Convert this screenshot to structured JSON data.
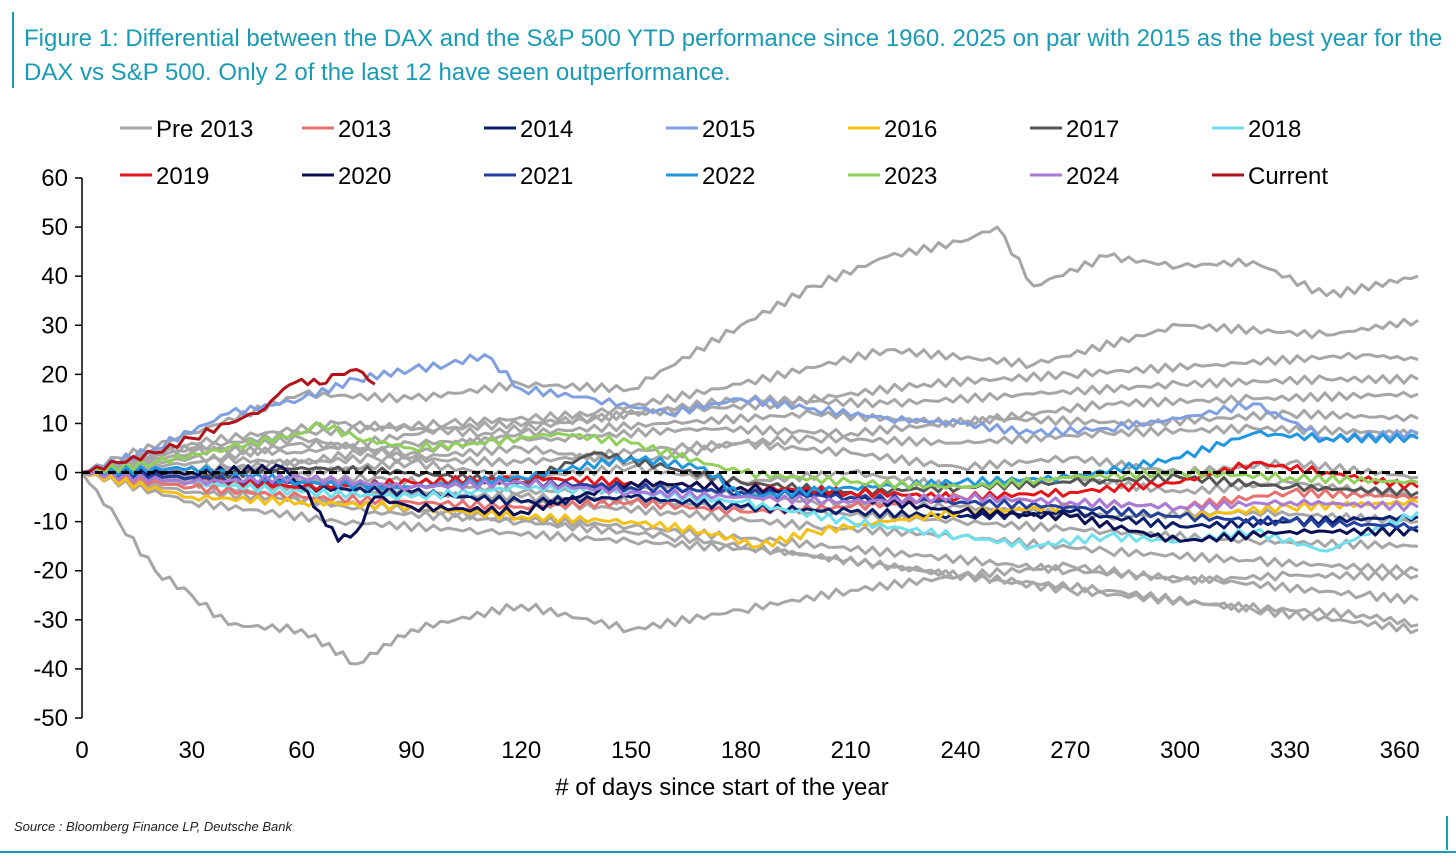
{
  "title": "Figure 1: Differential between the DAX and the S&P 500 YTD performance since 1960. 2025 on par with 2015 as the best year for the DAX vs S&P 500. Only 2 of the last 12 have seen outperformance.",
  "source": "Source : Bloomberg Finance LP, Deutsche Bank",
  "chart_data": {
    "type": "line",
    "title": "",
    "xlabel": "# of days since start of the year",
    "ylabel": "",
    "xlim": [
      0,
      365
    ],
    "ylim": [
      -50,
      60
    ],
    "x_ticks": [
      0,
      30,
      60,
      90,
      120,
      150,
      180,
      210,
      240,
      270,
      300,
      330,
      360
    ],
    "y_ticks": [
      60,
      50,
      40,
      30,
      20,
      10,
      0,
      -10,
      -20,
      -30,
      -40,
      -50
    ],
    "grid": false,
    "legend_position": "top",
    "zero_line": {
      "y": 0,
      "style": "dashed",
      "color": "#000000"
    },
    "legend": [
      {
        "name": "Pre 2013",
        "color": "#a6a6a6"
      },
      {
        "name": "2013",
        "color": "#e8706f"
      },
      {
        "name": "2014",
        "color": "#0b1e6b"
      },
      {
        "name": "2015",
        "color": "#7f9fe0"
      },
      {
        "name": "2016",
        "color": "#f5c016"
      },
      {
        "name": "2017",
        "color": "#555555"
      },
      {
        "name": "2018",
        "color": "#6fe0ee"
      },
      {
        "name": "2019",
        "color": "#e5141a"
      },
      {
        "name": "2020",
        "color": "#0a0f55"
      },
      {
        "name": "2021",
        "color": "#2140a0"
      },
      {
        "name": "2022",
        "color": "#1e96e0"
      },
      {
        "name": "2023",
        "color": "#8fcf5a"
      },
      {
        "name": "2024",
        "color": "#a97ad6"
      },
      {
        "name": "Current",
        "color": "#b2121a"
      }
    ],
    "series": [
      {
        "name": "Pre 2013",
        "color": "#a6a6a6",
        "x": [
          0,
          10,
          20,
          30,
          40,
          60,
          75,
          90,
          120,
          150,
          180,
          210,
          240,
          270,
          300,
          330,
          365
        ],
        "y": [
          0,
          -10,
          -20,
          -25,
          -31,
          -32,
          -39,
          -32,
          -27,
          -32,
          -28,
          -24,
          -21,
          -19,
          -22,
          -21,
          -21
        ]
      },
      {
        "name": "Pre 2013",
        "color": "#a6a6a6",
        "x": [
          0,
          10,
          30,
          60,
          90,
          120,
          150,
          180,
          200,
          220,
          240,
          250,
          260,
          280,
          300,
          320,
          340,
          365
        ],
        "y": [
          0,
          3,
          8,
          16,
          15,
          18,
          17,
          30,
          38,
          44,
          47,
          50,
          38,
          44,
          42,
          43,
          36,
          40
        ]
      },
      {
        "name": "Pre 2013",
        "color": "#a6a6a6",
        "x": [
          0,
          20,
          60,
          100,
          140,
          180,
          220,
          260,
          300,
          340,
          365
        ],
        "y": [
          0,
          4,
          8,
          10,
          12,
          18,
          25,
          22,
          30,
          28,
          31
        ]
      },
      {
        "name": "Pre 2013",
        "color": "#a6a6a6",
        "x": [
          0,
          30,
          70,
          110,
          150,
          190,
          230,
          270,
          310,
          350,
          365
        ],
        "y": [
          0,
          6,
          10,
          8,
          12,
          14,
          18,
          20,
          22,
          24,
          23
        ]
      },
      {
        "name": "Pre 2013",
        "color": "#a6a6a6",
        "x": [
          0,
          30,
          60,
          100,
          140,
          180,
          220,
          260,
          300,
          340,
          365
        ],
        "y": [
          0,
          5,
          4,
          9,
          11,
          15,
          14,
          16,
          18,
          19,
          19
        ]
      },
      {
        "name": "Pre 2013",
        "color": "#a6a6a6",
        "x": [
          0,
          30,
          60,
          90,
          120,
          160,
          200,
          240,
          280,
          320,
          365
        ],
        "y": [
          0,
          2,
          6,
          4,
          8,
          10,
          12,
          10,
          14,
          15,
          16
        ]
      },
      {
        "name": "Pre 2013",
        "color": "#a6a6a6",
        "x": [
          0,
          30,
          60,
          90,
          130,
          170,
          210,
          250,
          290,
          330,
          365
        ],
        "y": [
          0,
          3,
          2,
          6,
          7,
          9,
          8,
          11,
          10,
          12,
          11
        ]
      },
      {
        "name": "Pre 2013",
        "color": "#a6a6a6",
        "x": [
          0,
          40,
          80,
          120,
          160,
          200,
          240,
          280,
          320,
          365
        ],
        "y": [
          0,
          1,
          3,
          2,
          5,
          7,
          6,
          8,
          9,
          8
        ]
      },
      {
        "name": "Pre 2013",
        "color": "#a6a6a6",
        "x": [
          0,
          40,
          80,
          120,
          160,
          200,
          240,
          280,
          320,
          365
        ],
        "y": [
          0,
          -2,
          -4,
          -5,
          -6,
          -8,
          -10,
          -12,
          -14,
          -15
        ]
      },
      {
        "name": "Pre 2013",
        "color": "#a6a6a6",
        "x": [
          0,
          30,
          70,
          110,
          150,
          190,
          230,
          270,
          310,
          350,
          365
        ],
        "y": [
          0,
          -4,
          -6,
          -9,
          -11,
          -14,
          -17,
          -20,
          -22,
          -25,
          -26
        ]
      },
      {
        "name": "Pre 2013",
        "color": "#a6a6a6",
        "x": [
          0,
          30,
          70,
          110,
          150,
          190,
          230,
          270,
          310,
          350,
          365
        ],
        "y": [
          0,
          -6,
          -10,
          -12,
          -14,
          -16,
          -20,
          -24,
          -27,
          -29,
          -31
        ]
      },
      {
        "name": "Pre 2013",
        "color": "#a6a6a6",
        "x": [
          0,
          40,
          80,
          120,
          160,
          200,
          240,
          280,
          320,
          365
        ],
        "y": [
          0,
          -3,
          -8,
          -10,
          -13,
          -17,
          -21,
          -24,
          -28,
          -32
        ]
      },
      {
        "name": "Pre 2013",
        "color": "#a6a6a6",
        "x": [
          0,
          40,
          80,
          120,
          160,
          200,
          240,
          280,
          320,
          365
        ],
        "y": [
          0,
          -1,
          -3,
          -6,
          -8,
          -11,
          -13,
          -16,
          -18,
          -20
        ]
      },
      {
        "name": "Pre 2013",
        "color": "#a6a6a6",
        "x": [
          0,
          40,
          80,
          120,
          160,
          200,
          240,
          280,
          320,
          365
        ],
        "y": [
          0,
          -2,
          -1,
          -4,
          -3,
          -6,
          -7,
          -9,
          -8,
          -10
        ]
      },
      {
        "name": "Pre 2013",
        "color": "#a6a6a6",
        "x": [
          0,
          30,
          60,
          90,
          120,
          150,
          180,
          210,
          240,
          270,
          300,
          330,
          365
        ],
        "y": [
          0,
          1,
          0,
          2,
          -1,
          1,
          -2,
          0,
          -3,
          -1,
          -4,
          -2,
          -5
        ]
      },
      {
        "name": "Pre 2013",
        "color": "#a6a6a6",
        "x": [
          0,
          30,
          60,
          90,
          120,
          150,
          180,
          210,
          240,
          270,
          300,
          330,
          365
        ],
        "y": [
          0,
          4,
          7,
          3,
          5,
          2,
          6,
          4,
          1,
          3,
          0,
          2,
          -1
        ]
      },
      {
        "name": "2013",
        "color": "#e8706f",
        "x": [
          0,
          30,
          60,
          90,
          120,
          150,
          180,
          210,
          240,
          270,
          300,
          330,
          365
        ],
        "y": [
          0,
          -3,
          -5,
          -6,
          -7,
          -6,
          -8,
          -7,
          -5,
          -6,
          -7,
          -4,
          -5
        ]
      },
      {
        "name": "2014",
        "color": "#0b1e6b",
        "x": [
          0,
          30,
          60,
          90,
          120,
          150,
          180,
          210,
          240,
          270,
          300,
          330,
          365
        ],
        "y": [
          0,
          -1,
          -3,
          -4,
          -6,
          -5,
          -7,
          -8,
          -9,
          -8,
          -11,
          -10,
          -9
        ]
      },
      {
        "name": "2015",
        "color": "#7f9fe0",
        "x": [
          0,
          20,
          40,
          60,
          75,
          90,
          100,
          110,
          120,
          140,
          160,
          180,
          200,
          220,
          240,
          260,
          280,
          300,
          320,
          340,
          365
        ],
        "y": [
          0,
          5,
          12,
          15,
          19,
          21,
          22,
          24,
          17,
          15,
          12,
          15,
          13,
          11,
          10,
          8,
          9,
          11,
          14,
          7,
          8
        ]
      },
      {
        "name": "2016",
        "color": "#f5c016",
        "x": [
          0,
          30,
          60,
          90,
          120,
          150,
          170,
          185,
          200,
          220,
          240,
          270,
          300,
          330,
          365
        ],
        "y": [
          0,
          -5,
          -6,
          -7,
          -9,
          -10,
          -12,
          -15,
          -12,
          -10,
          -8,
          -7,
          -9,
          -7,
          -6
        ]
      },
      {
        "name": "2017",
        "color": "#555555",
        "x": [
          0,
          30,
          60,
          90,
          120,
          140,
          160,
          180,
          210,
          240,
          270,
          300,
          330,
          365
        ],
        "y": [
          0,
          -1,
          1,
          0,
          -2,
          4,
          1,
          -2,
          -4,
          -3,
          -2,
          -1,
          -3,
          -4
        ]
      },
      {
        "name": "2018",
        "color": "#6fe0ee",
        "x": [
          0,
          30,
          60,
          90,
          120,
          150,
          180,
          210,
          240,
          260,
          280,
          300,
          320,
          340,
          365
        ],
        "y": [
          0,
          -2,
          -4,
          -5,
          -3,
          -4,
          -6,
          -10,
          -13,
          -15,
          -13,
          -14,
          -12,
          -16,
          -8
        ]
      },
      {
        "name": "2019",
        "color": "#e5141a",
        "x": [
          0,
          30,
          60,
          90,
          120,
          150,
          180,
          210,
          240,
          270,
          300,
          320,
          340,
          365
        ],
        "y": [
          0,
          -1,
          -3,
          -2,
          -1,
          -2,
          -3,
          -4,
          -5,
          -4,
          -2,
          2,
          0,
          -3
        ]
      },
      {
        "name": "2020",
        "color": "#0a0f55",
        "x": [
          0,
          30,
          55,
          60,
          65,
          70,
          75,
          80,
          90,
          120,
          150,
          180,
          210,
          240,
          270,
          300,
          330,
          365
        ],
        "y": [
          0,
          0,
          1,
          -3,
          -8,
          -14,
          -12,
          -5,
          -7,
          -8,
          -2,
          -3,
          -5,
          -8,
          -9,
          -14,
          -12,
          -12
        ]
      },
      {
        "name": "2021",
        "color": "#2140a0",
        "x": [
          0,
          30,
          60,
          90,
          120,
          150,
          180,
          210,
          240,
          270,
          300,
          330,
          365
        ],
        "y": [
          0,
          -1,
          -2,
          -3,
          -2,
          -3,
          -4,
          -5,
          -6,
          -7,
          -9,
          -10,
          -11
        ]
      },
      {
        "name": "2022",
        "color": "#1e96e0",
        "x": [
          0,
          30,
          60,
          90,
          120,
          150,
          170,
          180,
          210,
          240,
          270,
          300,
          320,
          340,
          365
        ],
        "y": [
          0,
          1,
          -2,
          -3,
          -1,
          3,
          1,
          -5,
          -3,
          -2,
          -1,
          3,
          8,
          7,
          7
        ]
      },
      {
        "name": "2023",
        "color": "#8fcf5a",
        "x": [
          0,
          20,
          40,
          60,
          65,
          75,
          90,
          110,
          130,
          150,
          180,
          210,
          240,
          270,
          300,
          330,
          365
        ],
        "y": [
          0,
          2,
          5,
          8,
          10,
          7,
          5,
          6,
          8,
          6,
          0,
          -2,
          -3,
          -1,
          0,
          -1,
          -2
        ]
      },
      {
        "name": "2024",
        "color": "#a97ad6",
        "x": [
          0,
          30,
          60,
          90,
          120,
          150,
          180,
          210,
          240,
          270,
          300,
          330,
          365
        ],
        "y": [
          0,
          -2,
          -1,
          -3,
          -2,
          -4,
          -5,
          -6,
          -5,
          -6,
          -7,
          -6,
          -7
        ]
      },
      {
        "name": "Current",
        "color": "#b2121a",
        "x": [
          0,
          10,
          20,
          30,
          40,
          50,
          55,
          60,
          65,
          70,
          75,
          80
        ],
        "y": [
          0,
          2,
          4,
          7,
          10,
          13,
          17,
          19,
          18,
          20,
          21,
          18
        ]
      }
    ]
  }
}
